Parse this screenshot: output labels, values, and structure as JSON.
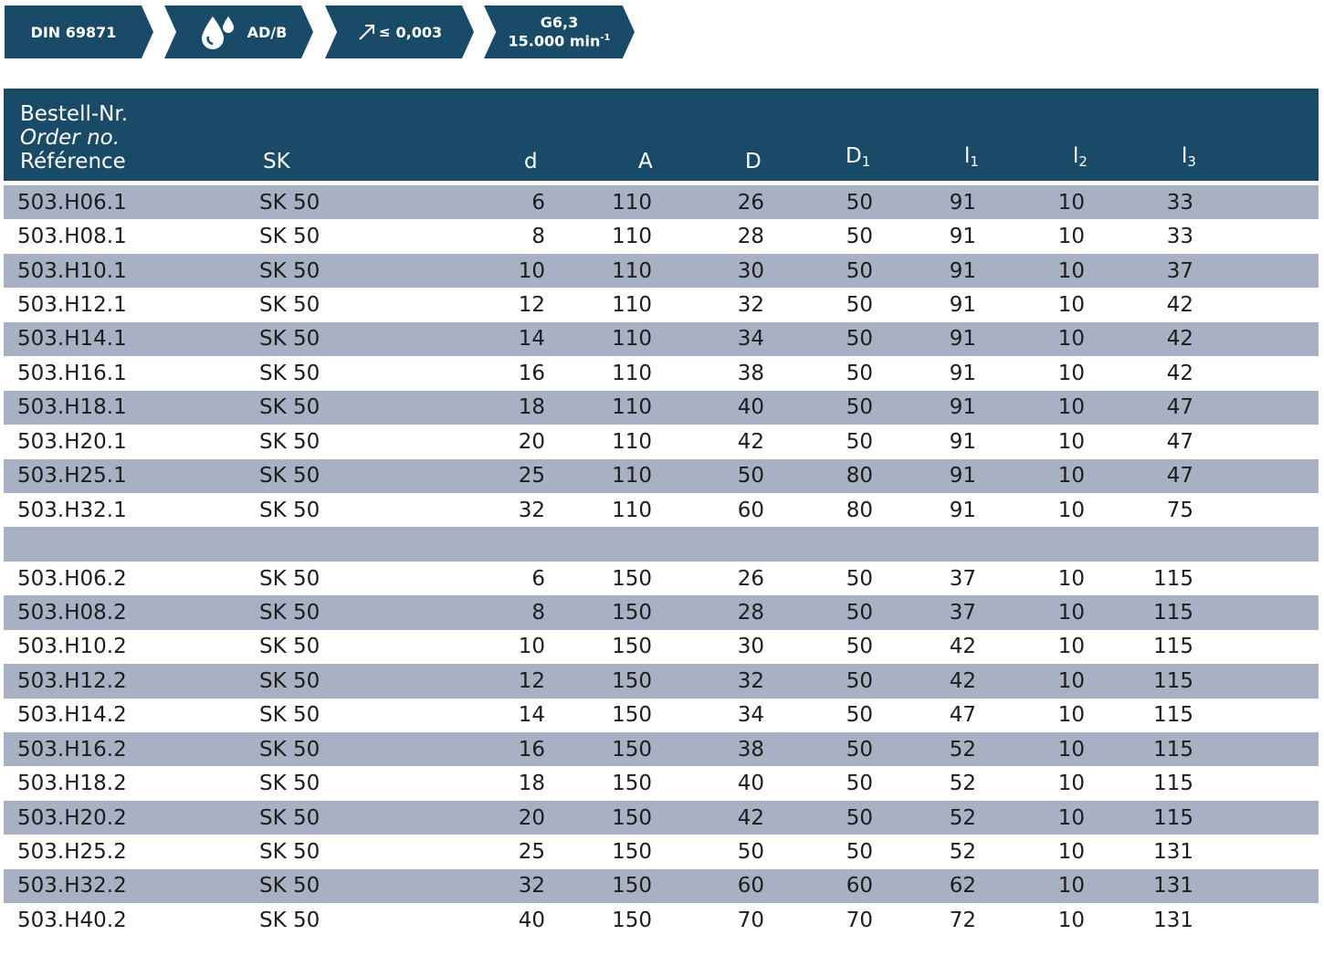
{
  "badges": {
    "standard": "DIN 69871",
    "coolant": "AD/B",
    "runout_prefix": "≤",
    "runout": "0,003",
    "balance": "G6,3",
    "speed": "15.000 min",
    "speed_exp": "-1",
    "icons": [
      "coolant-drops-icon",
      "runout-arrow-icon"
    ]
  },
  "header": {
    "order_de": "Bestell-Nr.",
    "order_en": "Order no.",
    "order_fr": "Référence",
    "sk": "SK",
    "d": "d",
    "A": "A",
    "D": "D",
    "D1_base": "D",
    "D1_sub": "1",
    "l1_base": "l",
    "l1_sub": "1",
    "l2_base": "l",
    "l2_sub": "2",
    "l3_base": "l",
    "l3_sub": "3"
  },
  "colors": {
    "header_bg": "#194a68",
    "stripe": "#a8b0c4"
  },
  "rows_group1": [
    {
      "ref": "503.H06.1",
      "sk": "SK 50",
      "d": "6",
      "A": "110",
      "D": "26",
      "D1": "50",
      "l1": "91",
      "l2": "10",
      "l3": "33"
    },
    {
      "ref": "503.H08.1",
      "sk": "SK 50",
      "d": "8",
      "A": "110",
      "D": "28",
      "D1": "50",
      "l1": "91",
      "l2": "10",
      "l3": "33"
    },
    {
      "ref": "503.H10.1",
      "sk": "SK 50",
      "d": "10",
      "A": "110",
      "D": "30",
      "D1": "50",
      "l1": "91",
      "l2": "10",
      "l3": "37"
    },
    {
      "ref": "503.H12.1",
      "sk": "SK 50",
      "d": "12",
      "A": "110",
      "D": "32",
      "D1": "50",
      "l1": "91",
      "l2": "10",
      "l3": "42"
    },
    {
      "ref": "503.H14.1",
      "sk": "SK 50",
      "d": "14",
      "A": "110",
      "D": "34",
      "D1": "50",
      "l1": "91",
      "l2": "10",
      "l3": "42"
    },
    {
      "ref": "503.H16.1",
      "sk": "SK 50",
      "d": "16",
      "A": "110",
      "D": "38",
      "D1": "50",
      "l1": "91",
      "l2": "10",
      "l3": "42"
    },
    {
      "ref": "503.H18.1",
      "sk": "SK 50",
      "d": "18",
      "A": "110",
      "D": "40",
      "D1": "50",
      "l1": "91",
      "l2": "10",
      "l3": "47"
    },
    {
      "ref": "503.H20.1",
      "sk": "SK 50",
      "d": "20",
      "A": "110",
      "D": "42",
      "D1": "50",
      "l1": "91",
      "l2": "10",
      "l3": "47"
    },
    {
      "ref": "503.H25.1",
      "sk": "SK 50",
      "d": "25",
      "A": "110",
      "D": "50",
      "D1": "80",
      "l1": "91",
      "l2": "10",
      "l3": "47"
    },
    {
      "ref": "503.H32.1",
      "sk": "SK 50",
      "d": "32",
      "A": "110",
      "D": "60",
      "D1": "80",
      "l1": "91",
      "l2": "10",
      "l3": "75"
    }
  ],
  "rows_group2": [
    {
      "ref": "503.H06.2",
      "sk": "SK 50",
      "d": "6",
      "A": "150",
      "D": "26",
      "D1": "50",
      "l1": "37",
      "l2": "10",
      "l3": "115"
    },
    {
      "ref": "503.H08.2",
      "sk": "SK 50",
      "d": "8",
      "A": "150",
      "D": "28",
      "D1": "50",
      "l1": "37",
      "l2": "10",
      "l3": "115"
    },
    {
      "ref": "503.H10.2",
      "sk": "SK 50",
      "d": "10",
      "A": "150",
      "D": "30",
      "D1": "50",
      "l1": "42",
      "l2": "10",
      "l3": "115"
    },
    {
      "ref": "503.H12.2",
      "sk": "SK 50",
      "d": "12",
      "A": "150",
      "D": "32",
      "D1": "50",
      "l1": "42",
      "l2": "10",
      "l3": "115"
    },
    {
      "ref": "503.H14.2",
      "sk": "SK 50",
      "d": "14",
      "A": "150",
      "D": "34",
      "D1": "50",
      "l1": "47",
      "l2": "10",
      "l3": "115"
    },
    {
      "ref": "503.H16.2",
      "sk": "SK 50",
      "d": "16",
      "A": "150",
      "D": "38",
      "D1": "50",
      "l1": "52",
      "l2": "10",
      "l3": "115"
    },
    {
      "ref": "503.H18.2",
      "sk": "SK 50",
      "d": "18",
      "A": "150",
      "D": "40",
      "D1": "50",
      "l1": "52",
      "l2": "10",
      "l3": "115"
    },
    {
      "ref": "503.H20.2",
      "sk": "SK 50",
      "d": "20",
      "A": "150",
      "D": "42",
      "D1": "50",
      "l1": "52",
      "l2": "10",
      "l3": "115"
    },
    {
      "ref": "503.H25.2",
      "sk": "SK 50",
      "d": "25",
      "A": "150",
      "D": "50",
      "D1": "50",
      "l1": "52",
      "l2": "10",
      "l3": "131"
    },
    {
      "ref": "503.H32.2",
      "sk": "SK 50",
      "d": "32",
      "A": "150",
      "D": "60",
      "D1": "60",
      "l1": "62",
      "l2": "10",
      "l3": "131"
    },
    {
      "ref": "503.H40.2",
      "sk": "SK 50",
      "d": "40",
      "A": "150",
      "D": "70",
      "D1": "70",
      "l1": "72",
      "l2": "10",
      "l3": "131"
    }
  ]
}
